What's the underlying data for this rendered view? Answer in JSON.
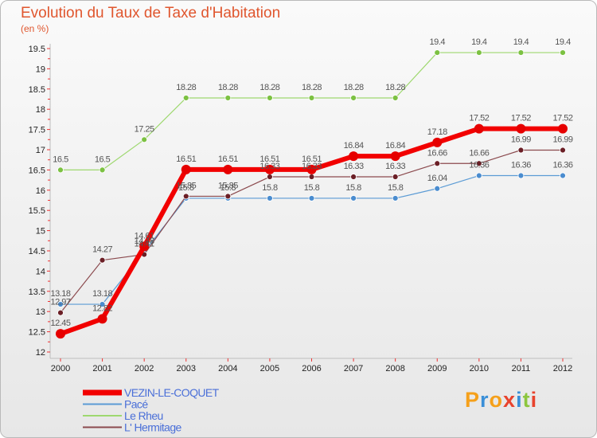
{
  "title": "Evolution du Taux de Taxe d'Habitation",
  "unit": "(en %)",
  "logo": {
    "letters": [
      "P",
      "r",
      "o",
      "x",
      "i",
      "t",
      "i"
    ],
    "colors": [
      "#f5a01a",
      "#3a8fd8",
      "#f5a01a",
      "#e8432d",
      "#3a8fd8",
      "#8cc63e",
      "#e8432d"
    ]
  },
  "chart_data": {
    "type": "line",
    "title": "Evolution du Taux de Taxe d'Habitation",
    "ylabel": "(en %)",
    "xlabel": "",
    "ylim": [
      12,
      19.5
    ],
    "yticks": [
      12,
      12.5,
      13,
      13.5,
      14,
      14.5,
      15,
      15.5,
      16,
      16.5,
      17,
      17.5,
      18,
      18.5,
      19,
      19.5
    ],
    "grid": false,
    "legend": "bottom-left",
    "x": [
      2000,
      2001,
      2002,
      2003,
      2004,
      2005,
      2006,
      2007,
      2008,
      2009,
      2010,
      2011,
      2012
    ],
    "series": [
      {
        "name": "Pacé",
        "color": "#5b9bd5",
        "marker": "#4a8ccf",
        "width": 1.2,
        "values": [
          13.18,
          13.18,
          14.48,
          15.8,
          15.8,
          15.8,
          15.8,
          15.8,
          15.8,
          16.04,
          16.36,
          16.36,
          16.36
        ],
        "labels": [
          "13.18",
          "13.18",
          "14.48",
          "15.8",
          "15.8",
          "15.8",
          "15.8",
          "15.8",
          "15.8",
          "16.04",
          "16.36",
          "16.36",
          "16.36"
        ]
      },
      {
        "name": "Le Rheu",
        "color": "#9ed86f",
        "marker": "#7cc142",
        "width": 1.2,
        "values": [
          16.5,
          16.5,
          17.25,
          18.28,
          18.28,
          18.28,
          18.28,
          18.28,
          18.28,
          19.4,
          19.4,
          19.4,
          19.4
        ],
        "labels": [
          "16.5",
          "16.5",
          "17.25",
          "18.28",
          "18.28",
          "18.28",
          "18.28",
          "18.28",
          "18.28",
          "19.4",
          "19.4",
          "19.4",
          "19.4"
        ]
      },
      {
        "name": "L' Hermitage",
        "color": "#8b4a4e",
        "marker": "#6b1f26",
        "width": 1.2,
        "values": [
          12.97,
          14.27,
          14.41,
          15.85,
          15.85,
          16.33,
          16.33,
          16.33,
          16.33,
          16.66,
          16.66,
          16.99,
          16.99
        ],
        "labels": [
          "12.97",
          "14.27",
          "14.41",
          "15.85",
          "15.85",
          "16.33",
          "16.33",
          "16.33",
          "16.33",
          "16.66",
          "16.66",
          "16.99",
          "16.99"
        ]
      },
      {
        "name": "VEZIN-LE-COQUET",
        "color": "#f20000",
        "marker": "#e60000",
        "width": 6,
        "values": [
          12.45,
          12.82,
          14.61,
          16.51,
          16.51,
          16.51,
          16.51,
          16.84,
          16.84,
          17.18,
          17.52,
          17.52,
          17.52
        ],
        "labels": [
          "12.45",
          "12.82",
          "14.61",
          "16.51",
          "16.51",
          "16.51",
          "16.51",
          "16.84",
          "16.84",
          "17.18",
          "17.52",
          "17.52",
          "17.52"
        ]
      }
    ],
    "legend_order": [
      "VEZIN-LE-COQUET",
      "Pacé",
      "Le Rheu",
      "L' Hermitage"
    ]
  }
}
